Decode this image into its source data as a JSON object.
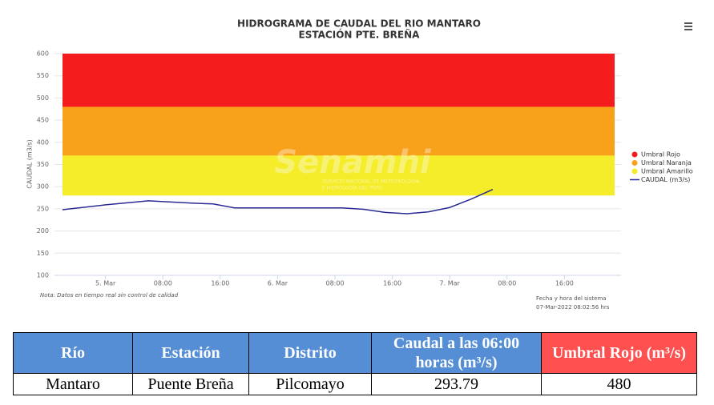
{
  "chart_data": {
    "type": "line",
    "title": "HIDROGRAMA DE CAUDAL DEL RIO MANTARO",
    "subtitle": "ESTACIÓN PTE. BREÑA",
    "y_label": "CAUDAL (m3/s)",
    "note": "Nota: Datos en tiempo real sin control de calidad",
    "system_time_label": "Fecha y hora del sistema",
    "system_time": "07-Mar-2022 08:02:56 hrs",
    "watermark": "Senamhi",
    "watermark_sub": [
      "SERVICIO NACIONAL DE METEOROLOGÍA",
      "E HIDROLOGÍA DEL PERÚ"
    ],
    "x": [
      -6,
      0,
      6,
      12,
      15,
      18,
      24,
      33,
      36,
      39,
      42,
      45,
      48,
      51,
      54
    ],
    "series": [
      {
        "name": "CAUDAL (m3/s)",
        "color": "#2a2a96",
        "values": [
          248,
          259,
          268,
          263,
          261,
          252,
          252,
          252,
          249,
          242,
          239,
          243,
          253,
          272,
          293.79
        ]
      }
    ],
    "bands": [
      {
        "name": "Umbral Rojo",
        "color": "#f41c1c",
        "from": 480,
        "to": 600
      },
      {
        "name": "Umbral Naranja",
        "color": "#f8a21b",
        "from": 370,
        "to": 480
      },
      {
        "name": "Umbral Amarillo",
        "color": "#f5ec2a",
        "from": 280,
        "to": 370
      }
    ],
    "xlim": [
      -6,
      71
    ],
    "xticks": [
      {
        "value": 0,
        "label": "5. Mar"
      },
      {
        "value": 8,
        "label": "08:00"
      },
      {
        "value": 16,
        "label": "16:00"
      },
      {
        "value": 24,
        "label": "6. Mar"
      },
      {
        "value": 32,
        "label": "08:00"
      },
      {
        "value": 40,
        "label": "16:00"
      },
      {
        "value": 48,
        "label": "7. Mar"
      },
      {
        "value": 56,
        "label": "08:00"
      },
      {
        "value": 64,
        "label": "16:00"
      }
    ],
    "ylim": [
      100,
      600
    ],
    "yticks": [
      100,
      150,
      200,
      250,
      300,
      350,
      400,
      450,
      500,
      550,
      600
    ],
    "grid": true
  },
  "table": {
    "header": [
      "Río",
      "Estación",
      "Distrito",
      "Caudal a las 06:00 horas (m³/s)",
      "Umbral Rojo (m³/s)"
    ],
    "rows": [
      [
        "Mantaro",
        "Puente Breña",
        "Pilcomayo",
        "293.79",
        "480"
      ]
    ]
  }
}
